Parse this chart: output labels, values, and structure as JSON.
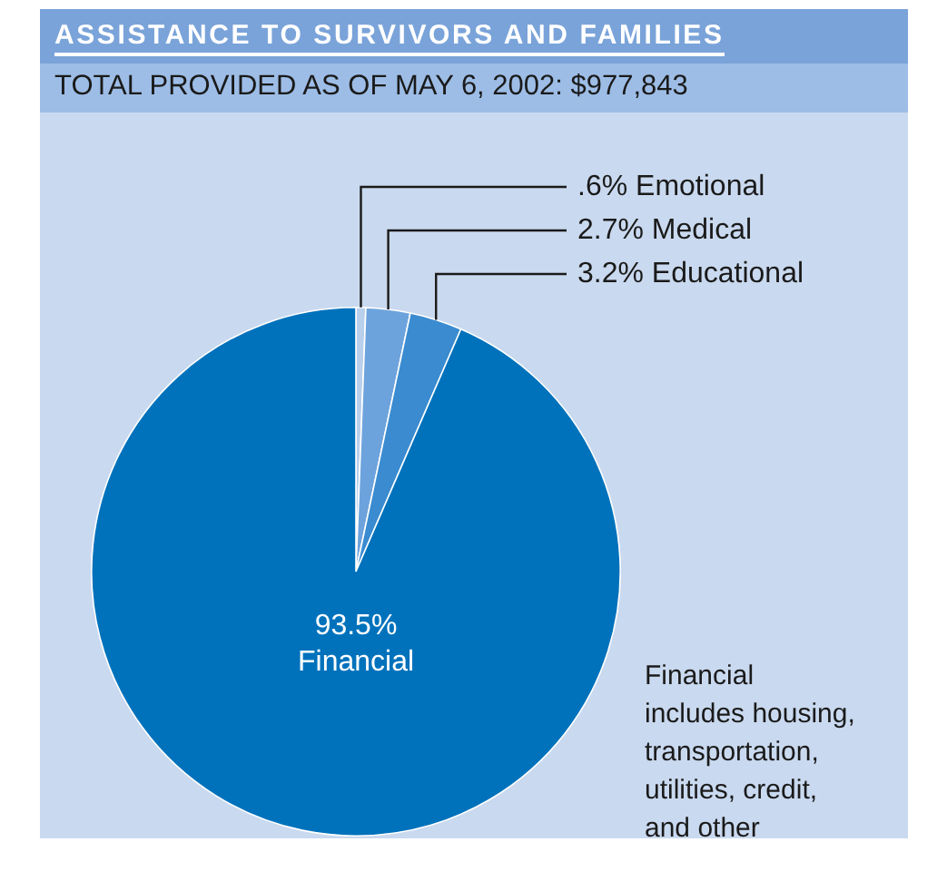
{
  "chart_data": {
    "type": "pie",
    "title": "ASSISTANCE TO SURVIVORS AND FAMILIES",
    "subtitle": "TOTAL PROVIDED AS OF MAY 6, 2002: $977,843",
    "categories": [
      "Emotional",
      "Medical",
      "Educational",
      "Financial"
    ],
    "values": [
      0.6,
      2.7,
      3.2,
      93.5
    ],
    "colors": [
      "#b9d0ec",
      "#6da3dc",
      "#3a8bd0",
      "#0072bc"
    ],
    "value_labels": [
      ".6%",
      "2.7%",
      "3.2%",
      "93.5%"
    ],
    "legend": false,
    "annotations": [
      "Financial includes housing, transportation, utilities, credit, and other"
    ]
  }
}
